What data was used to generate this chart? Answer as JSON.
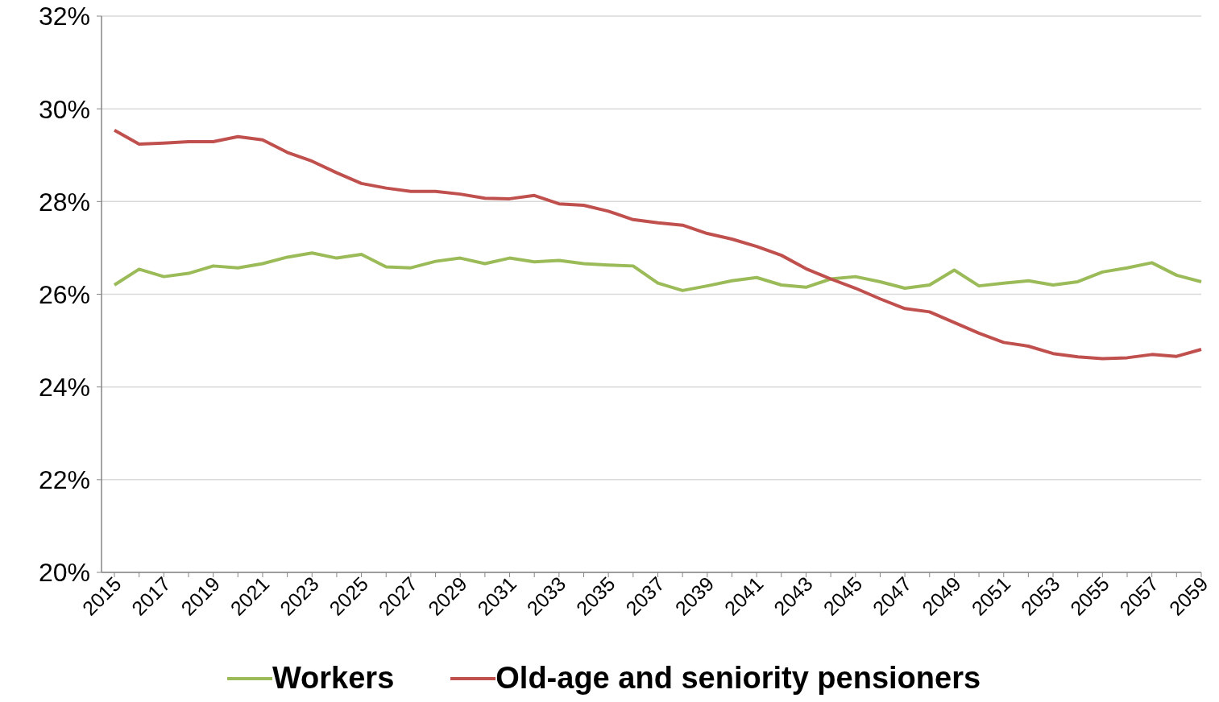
{
  "chart_data": {
    "type": "line",
    "categories": [
      "2015",
      null,
      "2017",
      null,
      "2019",
      null,
      "2021",
      null,
      "2023",
      null,
      "2025",
      null,
      "2027",
      null,
      "2029",
      null,
      "2031",
      null,
      "2033",
      null,
      "2035",
      null,
      "2037",
      null,
      "2039",
      null,
      "2041",
      null,
      "2043",
      null,
      "2045",
      null,
      "2047",
      null,
      "2049",
      null,
      "2051",
      null,
      "2053",
      null,
      "2055",
      null,
      "2057",
      null,
      "2059"
    ],
    "series": [
      {
        "name": "Workers",
        "color": "#9bbb59",
        "values": [
          26.2,
          26.54,
          26.38,
          26.45,
          26.61,
          26.57,
          26.66,
          26.8,
          26.89,
          26.78,
          26.86,
          26.59,
          26.57,
          26.71,
          26.78,
          26.66,
          26.78,
          26.7,
          26.73,
          26.66,
          26.63,
          26.61,
          26.24,
          26.08,
          26.18,
          26.29,
          26.36,
          26.2,
          26.15,
          26.33,
          26.38,
          26.27,
          26.13,
          26.2,
          26.52,
          26.18,
          26.24,
          26.29,
          26.2,
          26.27,
          26.48,
          26.57,
          26.68,
          26.41,
          26.27
        ]
      },
      {
        "name": "Old-age and seniority pensioners",
        "color": "#c0504d",
        "values": [
          29.54,
          29.24,
          29.26,
          29.29,
          29.29,
          29.4,
          29.33,
          29.06,
          28.87,
          28.62,
          28.39,
          28.29,
          28.22,
          28.22,
          28.16,
          28.07,
          28.06,
          28.13,
          27.95,
          27.92,
          27.79,
          27.61,
          27.54,
          27.49,
          27.31,
          27.19,
          27.03,
          26.84,
          26.55,
          26.33,
          26.13,
          25.9,
          25.69,
          25.62,
          25.39,
          25.16,
          24.96,
          24.88,
          24.72,
          24.65,
          24.61,
          24.63,
          24.7,
          24.66,
          24.81
        ]
      }
    ],
    "ylim": [
      20,
      32
    ],
    "yticks": [
      {
        "value": 20,
        "label": "20%"
      },
      {
        "value": 22,
        "label": "22%"
      },
      {
        "value": 24,
        "label": "24%"
      },
      {
        "value": 26,
        "label": "26%"
      },
      {
        "value": 28,
        "label": "28%"
      },
      {
        "value": 30,
        "label": "30%"
      },
      {
        "value": 32,
        "label": "32%"
      }
    ],
    "grid": "y",
    "legend": "bottom",
    "marker": "none",
    "line_style": "solid"
  }
}
